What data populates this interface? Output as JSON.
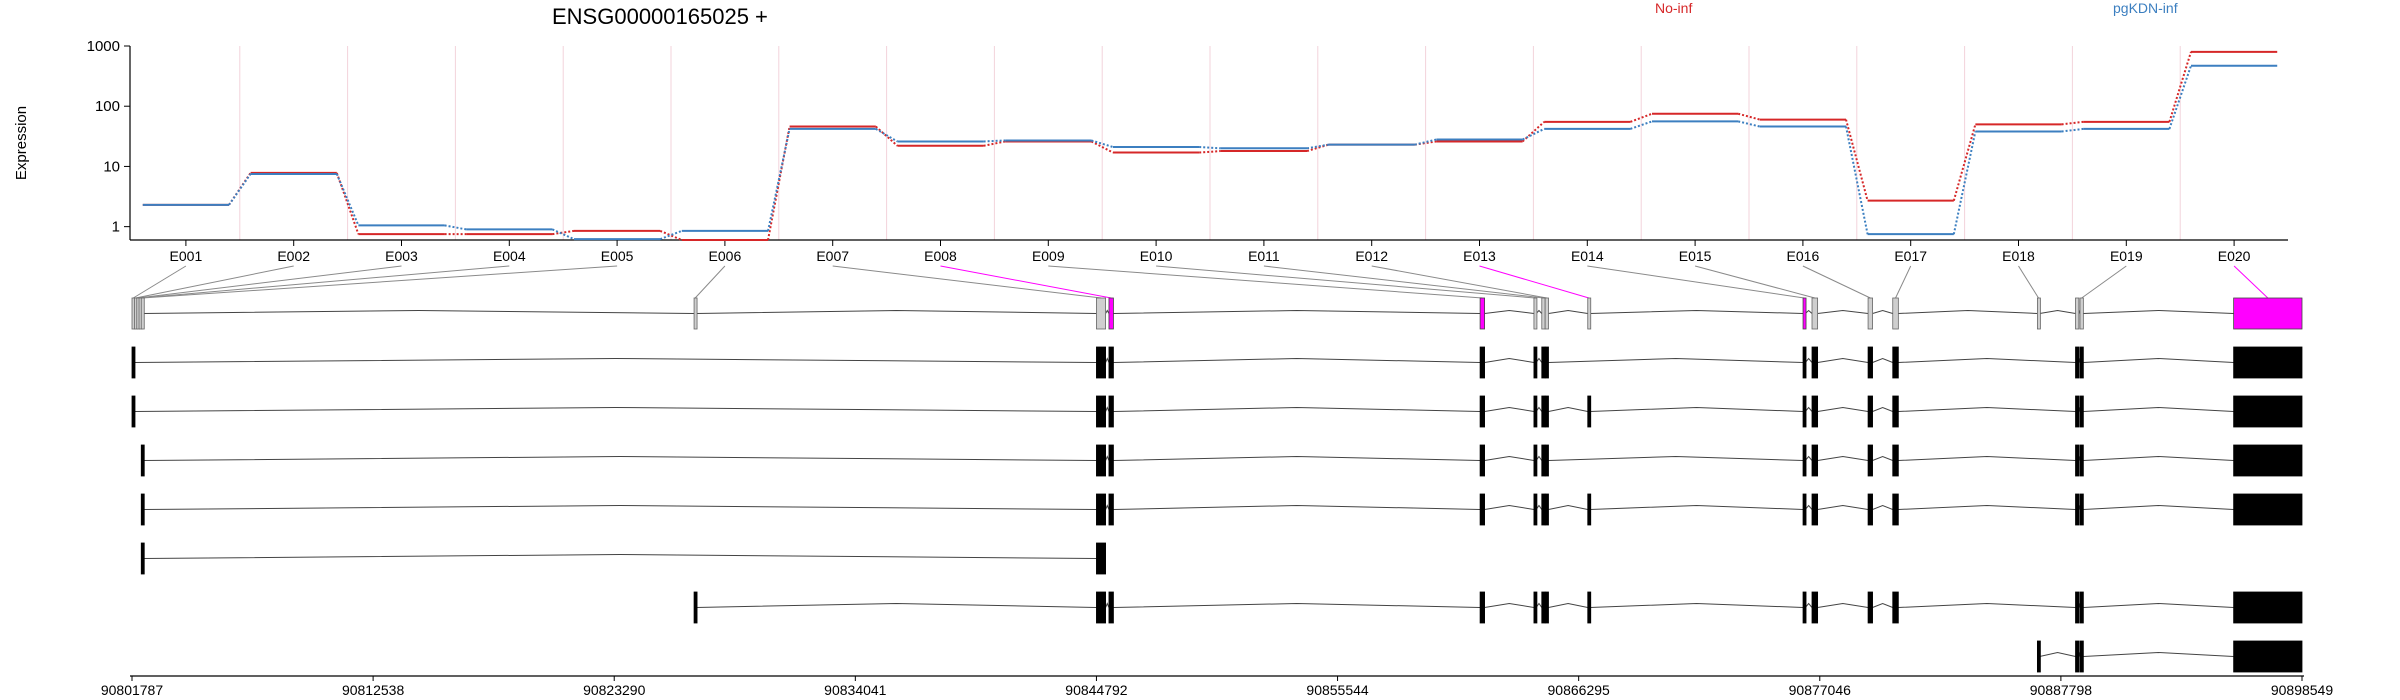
{
  "chart_data": {
    "type": "line",
    "title": "ENSG00000165025 +",
    "ylabel": "Expression",
    "yscale": "log",
    "ylim": [
      0.6,
      1000
    ],
    "yticks": [
      "1",
      "10",
      "100",
      "1000"
    ],
    "categories": [
      "E001",
      "E002",
      "E003",
      "E004",
      "E005",
      "E006",
      "E007",
      "E008",
      "E009",
      "E010",
      "E011",
      "E012",
      "E013",
      "E014",
      "E015",
      "E016",
      "E017",
      "E018",
      "E019",
      "E020"
    ],
    "series": [
      {
        "name": "No-inf",
        "color": "#d62728",
        "values": [
          2.3,
          7.8,
          0.75,
          0.75,
          0.85,
          0.6,
          46,
          22,
          26,
          17,
          18,
          23,
          26,
          55,
          75,
          60,
          2.7,
          50,
          55,
          800
        ]
      },
      {
        "name": "pgKDN-inf",
        "color": "#3c7fc0",
        "values": [
          2.3,
          7.5,
          1.05,
          0.9,
          0.62,
          0.85,
          42,
          26,
          27,
          21,
          20,
          23,
          28,
          42,
          56,
          46,
          0.75,
          38,
          42,
          470
        ]
      }
    ],
    "legend": [
      "No-inf",
      "pgKDN-inf"
    ],
    "legend_placement": "top-right",
    "genomic_axis": {
      "range": [
        90801787,
        90898549
      ],
      "tick_labels": [
        "90801787",
        "90812538",
        "90823290",
        "90834041",
        "90844792",
        "90855544",
        "90866295",
        "90877046",
        "90887798",
        "90898549"
      ]
    },
    "highlight_exons": [
      "E008",
      "E013",
      "E020"
    ],
    "highlight_color": "#ff00ff",
    "transcript_count": 8
  }
}
